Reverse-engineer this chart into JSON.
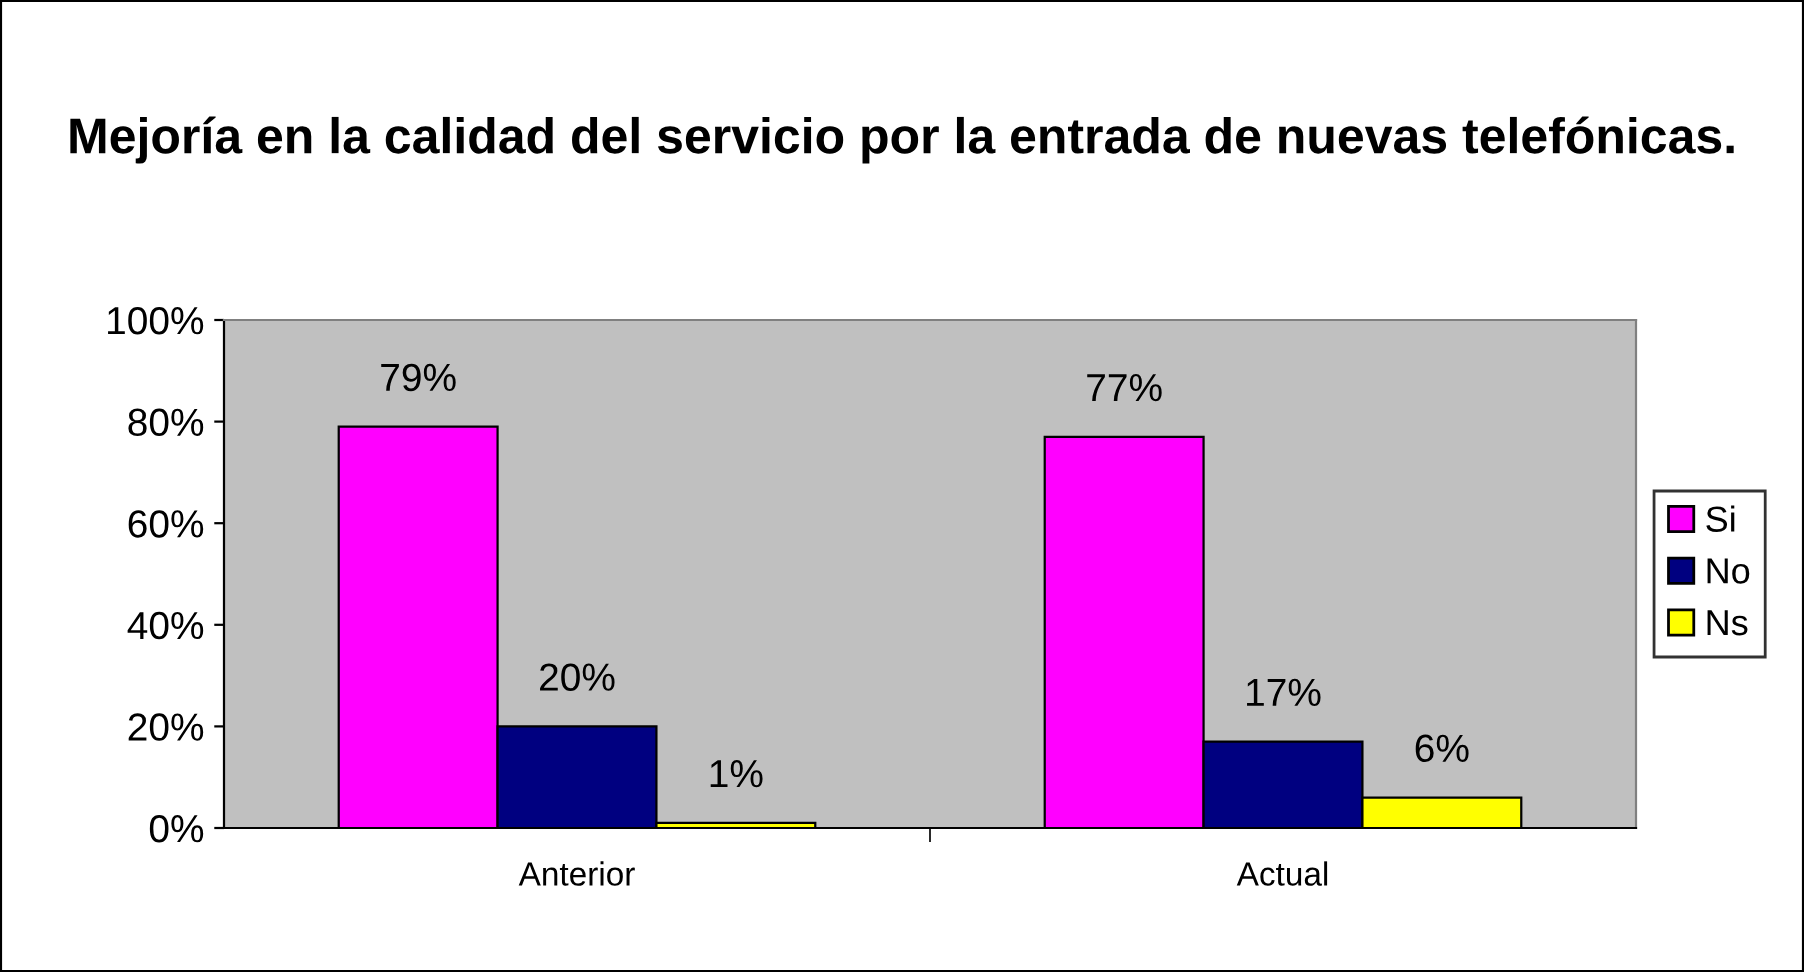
{
  "chart_data": {
    "type": "bar",
    "title": "Mejoría en la calidad del servicio por la entrada de nuevas telefónicas.",
    "categories": [
      "Anterior",
      "Actual"
    ],
    "series": [
      {
        "name": "Si",
        "color": "#ff00ff",
        "values": [
          79,
          77
        ],
        "value_labels": [
          "79%",
          "77%"
        ]
      },
      {
        "name": "No",
        "color": "#000080",
        "values": [
          20,
          17
        ],
        "value_labels": [
          "20%",
          "17%"
        ]
      },
      {
        "name": "Ns",
        "color": "#ffff00",
        "values": [
          1,
          6
        ],
        "value_labels": [
          "1%",
          "6%"
        ]
      }
    ],
    "ylim": [
      0,
      100
    ],
    "yticks": [
      {
        "value": 0,
        "label": "0%"
      },
      {
        "value": 20,
        "label": "20%"
      },
      {
        "value": 40,
        "label": "40%"
      },
      {
        "value": 60,
        "label": "60%"
      },
      {
        "value": 80,
        "label": "80%"
      },
      {
        "value": 100,
        "label": "100%"
      }
    ],
    "grid": false,
    "legend": "right"
  }
}
